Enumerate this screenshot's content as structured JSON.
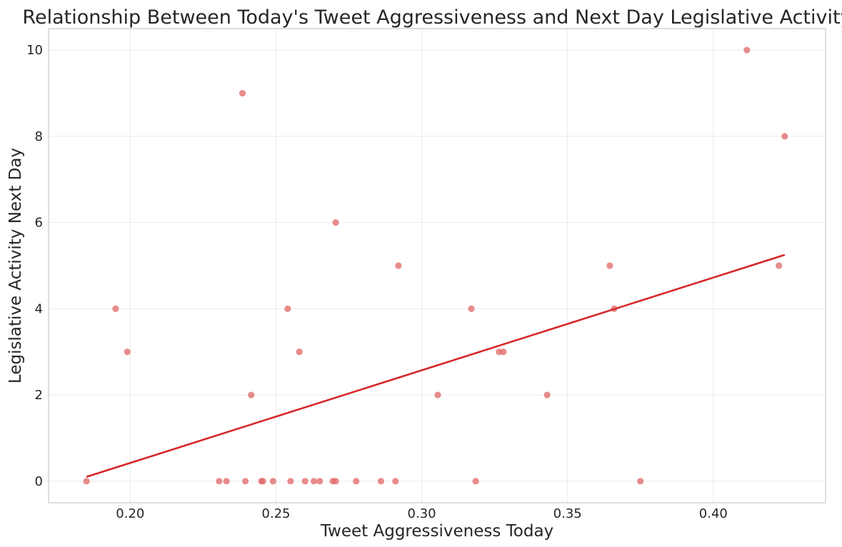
{
  "chart_data": {
    "type": "scatter",
    "title": "Relationship Between Today's Tweet Aggressiveness and Next Day Legislative Activity",
    "xlabel": "Tweet Aggressiveness Today",
    "ylabel": "Legislative Activity Next Day",
    "xlim": [
      0.172,
      0.4385
    ],
    "ylim": [
      -0.5,
      10.5
    ],
    "xticks": [
      0.2,
      0.25,
      0.3,
      0.35,
      0.4
    ],
    "xtick_labels": [
      "0.20",
      "0.25",
      "0.30",
      "0.35",
      "0.40"
    ],
    "yticks": [
      0,
      2,
      4,
      6,
      8,
      10
    ],
    "ytick_labels": [
      "0",
      "2",
      "4",
      "6",
      "8",
      "10"
    ],
    "grid": true,
    "point_color": "#e06666",
    "trend_color": "#d62728",
    "points": [
      {
        "x": 0.185,
        "y": 0
      },
      {
        "x": 0.195,
        "y": 4
      },
      {
        "x": 0.199,
        "y": 3
      },
      {
        "x": 0.2305,
        "y": 0
      },
      {
        "x": 0.233,
        "y": 0
      },
      {
        "x": 0.2385,
        "y": 9
      },
      {
        "x": 0.2395,
        "y": 0
      },
      {
        "x": 0.2415,
        "y": 2
      },
      {
        "x": 0.245,
        "y": 0
      },
      {
        "x": 0.2455,
        "y": 0
      },
      {
        "x": 0.249,
        "y": 0
      },
      {
        "x": 0.254,
        "y": 4
      },
      {
        "x": 0.255,
        "y": 0
      },
      {
        "x": 0.258,
        "y": 3
      },
      {
        "x": 0.26,
        "y": 0
      },
      {
        "x": 0.263,
        "y": 0
      },
      {
        "x": 0.265,
        "y": 0
      },
      {
        "x": 0.2695,
        "y": 0
      },
      {
        "x": 0.2705,
        "y": 6
      },
      {
        "x": 0.2705,
        "y": 0
      },
      {
        "x": 0.2775,
        "y": 0
      },
      {
        "x": 0.286,
        "y": 0
      },
      {
        "x": 0.291,
        "y": 0
      },
      {
        "x": 0.292,
        "y": 5
      },
      {
        "x": 0.3055,
        "y": 2
      },
      {
        "x": 0.317,
        "y": 4
      },
      {
        "x": 0.3185,
        "y": 0
      },
      {
        "x": 0.3265,
        "y": 3
      },
      {
        "x": 0.328,
        "y": 3
      },
      {
        "x": 0.343,
        "y": 2
      },
      {
        "x": 0.3645,
        "y": 5
      },
      {
        "x": 0.366,
        "y": 4
      },
      {
        "x": 0.375,
        "y": 0
      },
      {
        "x": 0.4115,
        "y": 10
      },
      {
        "x": 0.4225,
        "y": 5
      },
      {
        "x": 0.4245,
        "y": 8
      }
    ],
    "trend_line": {
      "x": [
        0.185,
        0.4245
      ],
      "y": [
        0.1,
        5.25
      ]
    }
  }
}
